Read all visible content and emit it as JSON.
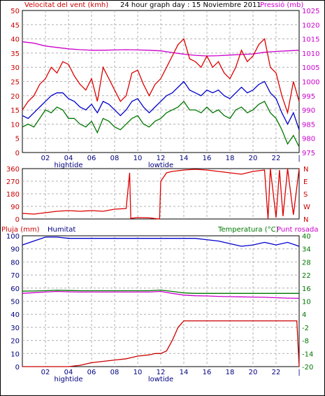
{
  "colors": {
    "wind": "#dd0000",
    "gust": "#dd0000",
    "avg": "#0000cc",
    "min": "#007700",
    "pressure": "#cc00cc",
    "grid": "#b0b0b0",
    "tick": "#000080",
    "text": "#000080"
  },
  "chart_data": [
    {
      "type": "line",
      "title": "24 hour graph day : 15 Noviembre 2011",
      "ylabel": "Velocitat del vent (kmh)",
      "y2label": "Pressió (mb)",
      "ylim": [
        0,
        50
      ],
      "y2lim": [
        975,
        1025
      ],
      "yticks": [
        "0",
        "5",
        "10",
        "15",
        "20",
        "25",
        "30",
        "35",
        "40",
        "45",
        "50"
      ],
      "y2ticks": [
        "975",
        "980",
        "985",
        "990",
        "995",
        "1000",
        "1005",
        "1010",
        "1015",
        "1020",
        "1025"
      ],
      "xticks": [
        "02",
        "04",
        "06",
        "08",
        "10",
        "12",
        "14",
        "16",
        "18",
        "20",
        "22",
        "|"
      ],
      "annotations": [
        "hightide",
        "lowtide"
      ],
      "series": [
        {
          "x": [
            0,
            0.5,
            1,
            1.5,
            2,
            2.5,
            3,
            3.5,
            4,
            4.5,
            5,
            5.5,
            6,
            6.5,
            7,
            7.5,
            8,
            8.5,
            9,
            9.5,
            10,
            10.5,
            11,
            11.5,
            12,
            12.5,
            13,
            13.5,
            14,
            14.5,
            15,
            15.5,
            16,
            16.5,
            17,
            17.5,
            18,
            18.5,
            19,
            19.5,
            20,
            20.5,
            21,
            21.5,
            22,
            22.5,
            23,
            23.5,
            24
          ],
          "values": [
            15,
            18,
            20,
            24,
            26,
            30,
            28,
            32,
            31,
            27,
            24,
            22,
            26,
            18,
            30,
            26,
            22,
            18,
            20,
            28,
            29,
            24,
            20,
            24,
            26,
            30,
            34,
            38,
            40,
            33,
            32,
            30,
            34,
            30,
            32,
            28,
            26,
            30,
            36,
            32,
            34,
            38,
            40,
            30,
            28,
            20,
            14,
            25,
            18
          ]
        },
        {
          "x": [
            0,
            0.5,
            1,
            1.5,
            2,
            2.5,
            3,
            3.5,
            4,
            4.5,
            5,
            5.5,
            6,
            6.5,
            7,
            7.5,
            8,
            8.5,
            9,
            9.5,
            10,
            10.5,
            11,
            11.5,
            12,
            12.5,
            13,
            13.5,
            14,
            14.5,
            15,
            15.5,
            16,
            16.5,
            17,
            17.5,
            18,
            18.5,
            19,
            19.5,
            20,
            20.5,
            21,
            21.5,
            22,
            22.5,
            23,
            23.5,
            24
          ],
          "values": [
            13,
            12,
            14,
            16,
            18,
            20,
            21,
            21,
            19,
            18,
            16,
            15,
            17,
            14,
            18,
            17,
            15,
            13,
            15,
            18,
            19,
            16,
            14,
            16,
            18,
            20,
            21,
            23,
            25,
            22,
            21,
            20,
            22,
            21,
            22,
            20,
            19,
            21,
            23,
            21,
            22,
            24,
            25,
            21,
            19,
            14,
            10,
            14,
            8
          ]
        },
        {
          "x": [
            0,
            0.5,
            1,
            1.5,
            2,
            2.5,
            3,
            3.5,
            4,
            4.5,
            5,
            5.5,
            6,
            6.5,
            7,
            7.5,
            8,
            8.5,
            9,
            9.5,
            10,
            10.5,
            11,
            11.5,
            12,
            12.5,
            13,
            13.5,
            14,
            14.5,
            15,
            15.5,
            16,
            16.5,
            17,
            17.5,
            18,
            18.5,
            19,
            19.5,
            20,
            20.5,
            21,
            21.5,
            22,
            22.5,
            23,
            23.5,
            24
          ],
          "values": [
            9,
            10,
            9,
            12,
            15,
            14,
            16,
            15,
            12,
            12,
            10,
            9,
            11,
            7,
            12,
            11,
            9,
            8,
            10,
            12,
            13,
            10,
            9,
            11,
            12,
            14,
            15,
            16,
            18,
            15,
            15,
            14,
            16,
            14,
            15,
            13,
            12,
            15,
            16,
            14,
            15,
            17,
            18,
            14,
            12,
            8,
            3,
            6,
            2
          ]
        },
        {
          "x": [
            0,
            1,
            2,
            3,
            4,
            5,
            6,
            7,
            8,
            9,
            10,
            11,
            12,
            13,
            14,
            15,
            16,
            17,
            18,
            19,
            20,
            21,
            22,
            23,
            24
          ],
          "values": [
            1014,
            1013.5,
            1012.5,
            1012,
            1011.5,
            1011.2,
            1011,
            1011,
            1011.1,
            1011.2,
            1011.1,
            1011,
            1010.8,
            1010.2,
            1009.6,
            1009.2,
            1009,
            1009.1,
            1009.3,
            1009.5,
            1009.7,
            1010.3,
            1010.6,
            1010.8,
            1011
          ]
        }
      ]
    },
    {
      "type": "line",
      "ylabel": "",
      "ylim": [
        0,
        360
      ],
      "yticks": [
        "0",
        "90",
        "180",
        "270",
        "360"
      ],
      "compass": [
        "N",
        "W",
        "S",
        "E",
        "N"
      ],
      "series": [
        {
          "x": [
            0,
            1,
            2,
            3,
            4,
            5,
            6,
            7,
            8,
            9,
            9.3,
            9.4,
            10,
            11,
            11.9,
            12,
            12.5,
            13,
            14,
            15,
            16,
            17,
            18,
            19,
            20,
            21,
            21.3,
            21.5,
            22,
            22.3,
            22.6,
            23,
            23.5,
            24
          ],
          "values": [
            40,
            35,
            45,
            55,
            60,
            55,
            60,
            55,
            70,
            75,
            330,
            5,
            10,
            8,
            0,
            270,
            330,
            340,
            350,
            355,
            350,
            340,
            330,
            320,
            340,
            350,
            0,
            360,
            10,
            350,
            20,
            360,
            30,
            360
          ]
        }
      ]
    },
    {
      "type": "line",
      "ylabel": "Pluja (mm)",
      "ylabel2": "Humitat",
      "y2label": "Temperatura (°C)",
      "y2label2": "Punt rosada",
      "ylim": [
        0,
        100
      ],
      "y2lim": [
        -20,
        40
      ],
      "yticks": [
        "0",
        "10",
        "20",
        "30",
        "40",
        "50",
        "60",
        "70",
        "80",
        "90",
        "100"
      ],
      "y2ticks": [
        "-20",
        "-14",
        "-8",
        "-2",
        "4",
        "10",
        "16",
        "22",
        "28",
        "34",
        "40"
      ],
      "xticks": [
        "02",
        "04",
        "06",
        "08",
        "10",
        "12",
        "14",
        "16",
        "18",
        "20",
        "22",
        "|"
      ],
      "annotations": [
        "hightide",
        "lowtide"
      ],
      "series": [
        {
          "x": [
            0,
            1,
            2,
            3,
            4,
            5,
            6,
            7,
            8,
            9,
            10,
            11,
            12,
            13,
            14,
            15,
            16,
            17,
            18,
            19,
            20,
            21,
            22,
            23,
            24
          ],
          "values": [
            93,
            96,
            99,
            99,
            98,
            98,
            98,
            98,
            98,
            98,
            98,
            98,
            98,
            98,
            98,
            98,
            97,
            96,
            94,
            92,
            93,
            95,
            93,
            95,
            92
          ]
        },
        {
          "x": [
            0,
            1,
            2,
            3,
            4,
            5,
            6,
            7,
            8,
            9,
            10,
            11,
            12,
            13,
            14,
            15,
            16,
            17,
            18,
            19,
            20,
            21,
            22,
            23,
            24
          ],
          "values": [
            14.6,
            14.7,
            14.8,
            15.0,
            14.9,
            14.8,
            14.8,
            14.8,
            14.8,
            14.8,
            14.8,
            14.8,
            15.1,
            14.5,
            13.8,
            13.6,
            13.6,
            13.6,
            13.6,
            13.6,
            13.6,
            13.6,
            13.6,
            13.6,
            13.6
          ]
        },
        {
          "x": [
            0,
            1,
            2,
            3,
            4,
            5,
            6,
            7,
            8,
            9,
            10,
            11,
            12,
            13,
            14,
            15,
            16,
            17,
            18,
            19,
            20,
            21,
            22,
            23,
            24
          ],
          "values": [
            13.6,
            13.9,
            14.2,
            14.5,
            14.3,
            14.2,
            14.2,
            14.2,
            14.2,
            14.2,
            14.2,
            14.2,
            14.5,
            13.6,
            12.8,
            12.5,
            12.4,
            12.2,
            12.1,
            12.0,
            11.9,
            11.8,
            11.6,
            11.4,
            11.3
          ]
        },
        {
          "x": [
            0,
            1,
            2,
            3,
            4,
            5,
            6,
            7,
            8,
            9,
            9.5,
            10,
            11,
            11.5,
            12,
            12.5,
            13,
            13.5,
            14,
            15,
            16,
            17,
            18,
            19,
            20,
            21,
            22,
            23,
            23.8,
            24
          ],
          "values": [
            0,
            0,
            0,
            0,
            0,
            1,
            3,
            4,
            5,
            6,
            7,
            8,
            9,
            10,
            10,
            12,
            20,
            30,
            35,
            35,
            35,
            35,
            35,
            35,
            35,
            35,
            35,
            35,
            35,
            0
          ]
        }
      ]
    }
  ]
}
